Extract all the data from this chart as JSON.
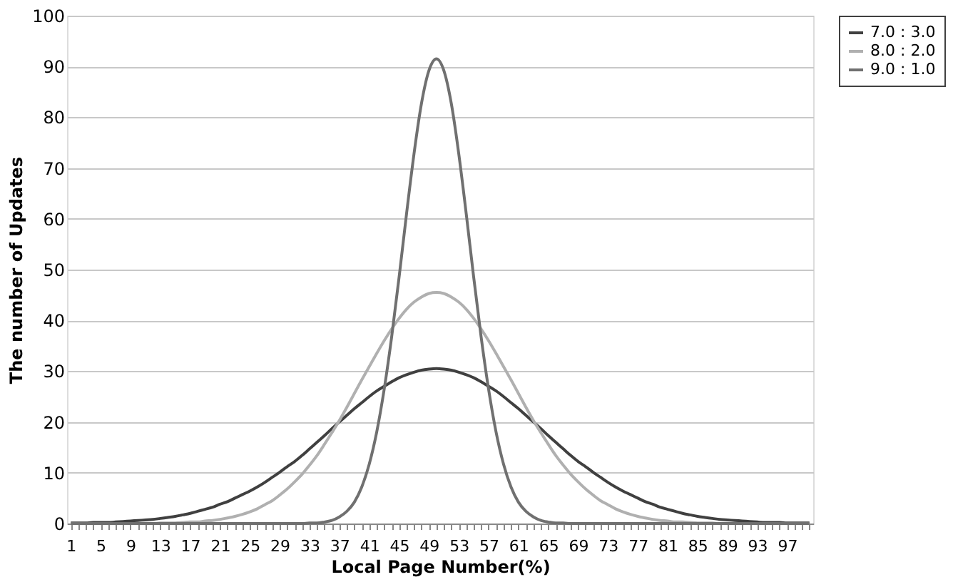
{
  "chart_data": {
    "type": "line",
    "xlabel": "Local Page Number(%)",
    "ylabel": "The number of Updates",
    "categories": [
      "1",
      null,
      null,
      null,
      "5",
      null,
      null,
      null,
      "9",
      null,
      null,
      null,
      "13",
      null,
      null,
      null,
      "17",
      null,
      null,
      null,
      "21",
      null,
      null,
      null,
      "25",
      null,
      null,
      null,
      "29",
      null,
      null,
      null,
      "33",
      null,
      null,
      null,
      "37",
      null,
      null,
      null,
      "41",
      null,
      null,
      null,
      "45",
      null,
      null,
      null,
      "49",
      null,
      null,
      null,
      "53",
      null,
      null,
      null,
      "57",
      null,
      null,
      null,
      "61",
      null,
      null,
      null,
      "65",
      null,
      null,
      null,
      "69",
      null,
      null,
      null,
      "73",
      null,
      null,
      null,
      "77",
      null,
      null,
      null,
      "81",
      null,
      null,
      null,
      "85",
      null,
      null,
      null,
      "89",
      null,
      null,
      null,
      "93",
      null,
      null,
      null,
      "97",
      null,
      null,
      null
    ],
    "ylim": [
      0,
      100
    ],
    "yticks": [
      0,
      10,
      20,
      30,
      40,
      50,
      60,
      70,
      80,
      90,
      100
    ],
    "grid": "y",
    "legend": "right",
    "marker": "none",
    "line_style": "solid",
    "series": [
      {
        "name": "7.0 : 3.0",
        "color": "#404040",
        "values": [
          0.1,
          0.1,
          0.1,
          0.2,
          0.2,
          0.2,
          0.3,
          0.4,
          0.5,
          0.6,
          0.7,
          0.8,
          1.0,
          1.2,
          1.4,
          1.7,
          2.0,
          2.4,
          2.8,
          3.2,
          3.8,
          4.3,
          5.0,
          5.7,
          6.4,
          7.2,
          8.1,
          9.1,
          10.1,
          11.2,
          12.2,
          13.4,
          14.7,
          16.0,
          17.3,
          18.7,
          20.0,
          21.3,
          22.6,
          23.8,
          25.0,
          26.1,
          27.0,
          27.9,
          28.7,
          29.3,
          29.8,
          30.2,
          30.4,
          30.5,
          30.4,
          30.2,
          29.8,
          29.3,
          28.7,
          27.9,
          27.0,
          26.1,
          25.0,
          23.8,
          22.6,
          21.3,
          20.0,
          18.7,
          17.3,
          16.0,
          14.7,
          13.4,
          12.2,
          11.2,
          10.1,
          9.1,
          8.1,
          7.2,
          6.4,
          5.7,
          5.0,
          4.3,
          3.8,
          3.2,
          2.8,
          2.4,
          2.0,
          1.7,
          1.4,
          1.2,
          1.0,
          0.8,
          0.7,
          0.6,
          0.5,
          0.4,
          0.3,
          0.2,
          0.2,
          0.2,
          0.1,
          0.1,
          0.1,
          0.1
        ]
      },
      {
        "name": "8.0 : 2.0",
        "color": "#b0b0b0",
        "values": [
          0,
          0,
          0,
          0,
          0,
          0,
          0,
          0,
          0,
          0,
          0,
          0,
          0.1,
          0.1,
          0.1,
          0.2,
          0.3,
          0.3,
          0.5,
          0.6,
          0.8,
          1.1,
          1.4,
          1.8,
          2.3,
          2.9,
          3.7,
          4.5,
          5.6,
          6.8,
          8.2,
          9.7,
          11.5,
          13.4,
          15.6,
          17.9,
          20.3,
          22.9,
          25.6,
          28.3,
          30.9,
          33.5,
          36.0,
          38.3,
          40.4,
          42.2,
          43.6,
          44.6,
          45.3,
          45.5,
          45.3,
          44.6,
          43.6,
          42.2,
          40.4,
          38.3,
          36.0,
          33.5,
          30.9,
          28.3,
          25.6,
          22.9,
          20.3,
          17.9,
          15.6,
          13.4,
          11.5,
          9.7,
          8.2,
          6.8,
          5.6,
          4.5,
          3.7,
          2.9,
          2.3,
          1.8,
          1.4,
          1.1,
          0.8,
          0.6,
          0.5,
          0.3,
          0.3,
          0.2,
          0.1,
          0.1,
          0.1,
          0,
          0,
          0,
          0,
          0,
          0,
          0,
          0,
          0,
          0,
          0,
          0,
          0
        ]
      },
      {
        "name": "9.0 : 1.0",
        "color": "#707070",
        "values": [
          0,
          0,
          0,
          0,
          0,
          0,
          0,
          0,
          0,
          0,
          0,
          0,
          0,
          0,
          0,
          0,
          0,
          0,
          0,
          0,
          0,
          0,
          0,
          0,
          0,
          0,
          0,
          0,
          0,
          0,
          0,
          0,
          0.1,
          0.1,
          0.3,
          0.6,
          1.3,
          2.4,
          4.2,
          7.2,
          11.7,
          18.0,
          26.4,
          36.7,
          48.5,
          61.0,
          72.8,
          82.7,
          89.2,
          91.5,
          89.2,
          82.7,
          72.8,
          61.0,
          48.5,
          36.7,
          26.4,
          18.0,
          11.7,
          7.2,
          4.2,
          2.4,
          1.3,
          0.6,
          0.3,
          0.1,
          0.1,
          0,
          0,
          0,
          0,
          0,
          0,
          0,
          0,
          0,
          0,
          0,
          0,
          0,
          0,
          0,
          0,
          0,
          0,
          0,
          0,
          0,
          0,
          0,
          0,
          0,
          0,
          0,
          0,
          0,
          0,
          0,
          0,
          0
        ]
      }
    ]
  }
}
